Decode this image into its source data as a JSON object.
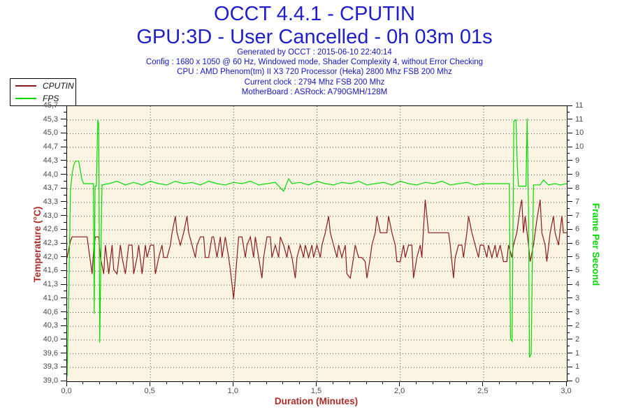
{
  "header": {
    "title": "OCCT 4.4.1 - CPUTIN",
    "subtitle": "GPU:3D - User Cancelled - 0h 03m 01s",
    "info_lines": [
      "Generated by OCCT : 2015-06-10 22:40:14",
      "Config : 1680 x 1050 @ 60 Hz, Windowed mode, Shader Complexity 4, without Error Checking",
      "CPU : AMD Phenom(tm) II X3 720 Processor (Heka) 2800 Mhz FSB 200 Mhz",
      "Current clock : 2794 Mhz FSB 200 Mhz",
      "MotherBoard : ASRock: A790GMH/128M"
    ],
    "text_color": "#1e1ecb"
  },
  "legend": {
    "items": [
      {
        "label": "CPUTIN",
        "color": "#8b1b1b"
      },
      {
        "label": "FPS",
        "color": "#00db00"
      }
    ]
  },
  "chart_data": {
    "type": "line",
    "title": "OCCT 4.4.1 - CPUTIN",
    "plot_bg": "#fbf4e2",
    "grid": "dotted",
    "grid_color": "#555555",
    "x_axis": {
      "label": "Duration (Minutes)",
      "label_color": "#ae2b26",
      "min": 0,
      "max": 3,
      "tick_labels": [
        "0,0",
        "0,5",
        "1,0",
        "1,5",
        "2,0",
        "2,5",
        "3,0"
      ],
      "major_step": 0.5,
      "minor_step": 0.1,
      "gridlines_at": [
        0.5,
        1.0,
        1.5,
        2.0,
        2.5
      ]
    },
    "y_left_axis": {
      "label": "Temperature (°C)",
      "label_color": "#ae2b26",
      "min": 39.0,
      "max": 45.667,
      "tick_labels_top_to_bottom": [
        "45,7",
        "45,3",
        "45,0",
        "44,7",
        "44,3",
        "44,0",
        "43,7",
        "43,3",
        "43,0",
        "42,6",
        "42,3",
        "42,0",
        "41,6",
        "41,3",
        "41,0",
        "40,6",
        "40,3",
        "40,0",
        "39,6",
        "39,3",
        "39,0"
      ]
    },
    "y_right_axis": {
      "label": "Frame Per Second",
      "label_color": "#00db00",
      "min": 0,
      "max": 11,
      "tick_labels_top_to_bottom": [
        "11",
        "11",
        "10",
        "10",
        "9",
        "9",
        "8",
        "7",
        "7",
        "6",
        "6",
        "5",
        "5",
        "4",
        "3",
        "3",
        "2",
        "2",
        "1",
        "1",
        "0"
      ]
    },
    "series": [
      {
        "name": "CPUTIN",
        "axis": "left",
        "color": "#8b1b1b",
        "points": [
          [
            0.0,
            42.0
          ],
          [
            0.02,
            42.4
          ],
          [
            0.03,
            42.5
          ],
          [
            0.06,
            42.5
          ],
          [
            0.09,
            42.5
          ],
          [
            0.12,
            42.5
          ],
          [
            0.14,
            41.9
          ],
          [
            0.15,
            41.6
          ],
          [
            0.16,
            42.2
          ],
          [
            0.17,
            42.5
          ],
          [
            0.19,
            42.5
          ],
          [
            0.2,
            42.0
          ],
          [
            0.22,
            41.6
          ],
          [
            0.23,
            42.3
          ],
          [
            0.25,
            41.6
          ],
          [
            0.27,
            42.3
          ],
          [
            0.28,
            41.7
          ],
          [
            0.3,
            41.6
          ],
          [
            0.32,
            42.3
          ],
          [
            0.33,
            42.0
          ],
          [
            0.35,
            41.6
          ],
          [
            0.37,
            42.3
          ],
          [
            0.39,
            42.3
          ],
          [
            0.4,
            41.6
          ],
          [
            0.42,
            42.0
          ],
          [
            0.43,
            42.3
          ],
          [
            0.45,
            41.6
          ],
          [
            0.47,
            42.3
          ],
          [
            0.48,
            42.0
          ],
          [
            0.5,
            42.3
          ],
          [
            0.52,
            42.3
          ],
          [
            0.53,
            41.6
          ],
          [
            0.55,
            42.0
          ],
          [
            0.57,
            42.3
          ],
          [
            0.58,
            42.0
          ],
          [
            0.6,
            42.0
          ],
          [
            0.62,
            42.3
          ],
          [
            0.63,
            42.6
          ],
          [
            0.65,
            43.0
          ],
          [
            0.66,
            42.6
          ],
          [
            0.68,
            42.3
          ],
          [
            0.7,
            42.6
          ],
          [
            0.72,
            43.0
          ],
          [
            0.73,
            42.6
          ],
          [
            0.75,
            42.3
          ],
          [
            0.77,
            42.0
          ],
          [
            0.78,
            42.3
          ],
          [
            0.8,
            42.5
          ],
          [
            0.82,
            42.5
          ],
          [
            0.83,
            42.0
          ],
          [
            0.85,
            42.0
          ],
          [
            0.87,
            42.5
          ],
          [
            0.88,
            42.5
          ],
          [
            0.9,
            42.0
          ],
          [
            0.92,
            42.5
          ],
          [
            0.93,
            42.0
          ],
          [
            0.95,
            42.5
          ],
          [
            0.97,
            42.0
          ],
          [
            0.98,
            41.7
          ],
          [
            1.0,
            41.0
          ],
          [
            1.02,
            42.0
          ],
          [
            1.03,
            42.5
          ],
          [
            1.05,
            42.5
          ],
          [
            1.07,
            42.0
          ],
          [
            1.08,
            42.3
          ],
          [
            1.1,
            42.5
          ],
          [
            1.12,
            42.0
          ],
          [
            1.13,
            42.5
          ],
          [
            1.15,
            42.0
          ],
          [
            1.17,
            41.5
          ],
          [
            1.18,
            42.0
          ],
          [
            1.2,
            42.5
          ],
          [
            1.22,
            42.5
          ],
          [
            1.23,
            42.0
          ],
          [
            1.25,
            42.3
          ],
          [
            1.27,
            42.0
          ],
          [
            1.28,
            42.5
          ],
          [
            1.3,
            42.3
          ],
          [
            1.32,
            42.0
          ],
          [
            1.33,
            42.3
          ],
          [
            1.35,
            42.0
          ],
          [
            1.37,
            41.5
          ],
          [
            1.38,
            42.0
          ],
          [
            1.4,
            42.3
          ],
          [
            1.42,
            42.0
          ],
          [
            1.43,
            42.3
          ],
          [
            1.45,
            42.0
          ],
          [
            1.47,
            42.3
          ],
          [
            1.48,
            42.0
          ],
          [
            1.5,
            42.3
          ],
          [
            1.52,
            42.0
          ],
          [
            1.53,
            42.3
          ],
          [
            1.55,
            42.6
          ],
          [
            1.57,
            43.0
          ],
          [
            1.58,
            42.6
          ],
          [
            1.6,
            42.3
          ],
          [
            1.62,
            42.0
          ],
          [
            1.63,
            42.3
          ],
          [
            1.65,
            42.0
          ],
          [
            1.67,
            42.3
          ],
          [
            1.68,
            41.6
          ],
          [
            1.7,
            41.5
          ],
          [
            1.72,
            42.0
          ],
          [
            1.73,
            42.3
          ],
          [
            1.75,
            42.0
          ],
          [
            1.77,
            42.0
          ],
          [
            1.79,
            41.9
          ],
          [
            1.8,
            41.5
          ],
          [
            1.82,
            42.0
          ],
          [
            1.83,
            42.3
          ],
          [
            1.85,
            42.6
          ],
          [
            1.86,
            43.0
          ],
          [
            1.88,
            42.6
          ],
          [
            1.9,
            42.6
          ],
          [
            1.92,
            42.6
          ],
          [
            1.93,
            43.0
          ],
          [
            1.95,
            42.6
          ],
          [
            1.97,
            42.3
          ],
          [
            1.98,
            41.9
          ],
          [
            2.0,
            41.9
          ],
          [
            2.02,
            42.3
          ],
          [
            2.03,
            42.0
          ],
          [
            2.05,
            42.3
          ],
          [
            2.07,
            42.3
          ],
          [
            2.08,
            41.5
          ],
          [
            2.1,
            42.0
          ],
          [
            2.12,
            42.3
          ],
          [
            2.13,
            42.0
          ],
          [
            2.15,
            43.4
          ],
          [
            2.17,
            42.6
          ],
          [
            2.2,
            42.6
          ],
          [
            2.23,
            42.6
          ],
          [
            2.26,
            42.6
          ],
          [
            2.29,
            42.6
          ],
          [
            2.3,
            42.3
          ],
          [
            2.32,
            41.5
          ],
          [
            2.33,
            42.0
          ],
          [
            2.35,
            42.3
          ],
          [
            2.37,
            42.3
          ],
          [
            2.38,
            42.0
          ],
          [
            2.4,
            42.6
          ],
          [
            2.41,
            43.0
          ],
          [
            2.43,
            42.6
          ],
          [
            2.45,
            42.3
          ],
          [
            2.47,
            42.0
          ],
          [
            2.48,
            42.3
          ],
          [
            2.5,
            42.3
          ],
          [
            2.52,
            42.0
          ],
          [
            2.53,
            42.3
          ],
          [
            2.55,
            42.0
          ],
          [
            2.57,
            42.3
          ],
          [
            2.58,
            42.0
          ],
          [
            2.6,
            42.3
          ],
          [
            2.62,
            41.9
          ],
          [
            2.64,
            41.9
          ],
          [
            2.65,
            42.3
          ],
          [
            2.67,
            42.0
          ],
          [
            2.68,
            42.3
          ],
          [
            2.7,
            42.6
          ],
          [
            2.72,
            43.2
          ],
          [
            2.73,
            43.4
          ],
          [
            2.74,
            42.6
          ],
          [
            2.75,
            43.0
          ],
          [
            2.77,
            42.3
          ],
          [
            2.78,
            41.9
          ],
          [
            2.8,
            42.3
          ],
          [
            2.82,
            42.9
          ],
          [
            2.84,
            43.4
          ],
          [
            2.85,
            42.6
          ],
          [
            2.87,
            42.3
          ],
          [
            2.88,
            41.9
          ],
          [
            2.9,
            42.6
          ],
          [
            2.92,
            43.0
          ],
          [
            2.93,
            42.6
          ],
          [
            2.95,
            42.3
          ],
          [
            2.97,
            43.0
          ],
          [
            2.98,
            42.6
          ],
          [
            3.0,
            42.6
          ]
        ]
      },
      {
        "name": "FPS",
        "axis": "right",
        "color": "#00db00",
        "points": [
          [
            0.0,
            0.2
          ],
          [
            0.01,
            3.5
          ],
          [
            0.02,
            7.6
          ],
          [
            0.03,
            8.3
          ],
          [
            0.04,
            8.65
          ],
          [
            0.05,
            8.8
          ],
          [
            0.07,
            8.8
          ],
          [
            0.08,
            8.4
          ],
          [
            0.09,
            8.05
          ],
          [
            0.1,
            7.9
          ],
          [
            0.13,
            7.9
          ],
          [
            0.158,
            7.9
          ],
          [
            0.163,
            2.7
          ],
          [
            0.168,
            7.8
          ],
          [
            0.176,
            7.8
          ],
          [
            0.184,
            10.45
          ],
          [
            0.19,
            10.3
          ],
          [
            0.196,
            1.55
          ],
          [
            0.205,
            6.0
          ],
          [
            0.21,
            7.85
          ],
          [
            0.25,
            7.9
          ],
          [
            0.3,
            8.0
          ],
          [
            0.35,
            7.85
          ],
          [
            0.4,
            7.95
          ],
          [
            0.45,
            7.85
          ],
          [
            0.5,
            8.0
          ],
          [
            0.55,
            7.9
          ],
          [
            0.6,
            7.85
          ],
          [
            0.65,
            8.0
          ],
          [
            0.7,
            7.9
          ],
          [
            0.75,
            7.95
          ],
          [
            0.8,
            7.85
          ],
          [
            0.85,
            8.0
          ],
          [
            0.9,
            7.9
          ],
          [
            0.95,
            7.85
          ],
          [
            1.0,
            7.95
          ],
          [
            1.05,
            7.9
          ],
          [
            1.1,
            8.0
          ],
          [
            1.15,
            7.85
          ],
          [
            1.2,
            7.9
          ],
          [
            1.25,
            7.95
          ],
          [
            1.3,
            7.6
          ],
          [
            1.33,
            8.1
          ],
          [
            1.35,
            7.9
          ],
          [
            1.4,
            7.95
          ],
          [
            1.45,
            7.85
          ],
          [
            1.5,
            8.0
          ],
          [
            1.55,
            7.9
          ],
          [
            1.6,
            7.85
          ],
          [
            1.65,
            7.95
          ],
          [
            1.7,
            7.9
          ],
          [
            1.75,
            8.0
          ],
          [
            1.8,
            7.85
          ],
          [
            1.85,
            7.9
          ],
          [
            1.9,
            7.95
          ],
          [
            1.95,
            7.85
          ],
          [
            2.0,
            8.0
          ],
          [
            2.05,
            7.9
          ],
          [
            2.1,
            7.85
          ],
          [
            2.15,
            7.95
          ],
          [
            2.2,
            7.9
          ],
          [
            2.25,
            8.0
          ],
          [
            2.3,
            7.85
          ],
          [
            2.35,
            7.9
          ],
          [
            2.4,
            7.95
          ],
          [
            2.45,
            7.85
          ],
          [
            2.5,
            7.9
          ],
          [
            2.55,
            7.9
          ],
          [
            2.6,
            7.9
          ],
          [
            2.64,
            7.9
          ],
          [
            2.655,
            7.9
          ],
          [
            2.662,
            1.7
          ],
          [
            2.672,
            1.6
          ],
          [
            2.682,
            10.4
          ],
          [
            2.695,
            10.45
          ],
          [
            2.703,
            8.6
          ],
          [
            2.71,
            7.8
          ],
          [
            2.74,
            7.8
          ],
          [
            2.755,
            7.8
          ],
          [
            2.762,
            10.5
          ],
          [
            2.77,
            6.8
          ],
          [
            2.776,
            0.95
          ],
          [
            2.786,
            1.1
          ],
          [
            2.8,
            7.85
          ],
          [
            2.84,
            7.85
          ],
          [
            2.86,
            8.05
          ],
          [
            2.89,
            7.85
          ],
          [
            2.93,
            7.9
          ],
          [
            2.96,
            7.85
          ],
          [
            3.0,
            7.9
          ]
        ]
      }
    ]
  }
}
